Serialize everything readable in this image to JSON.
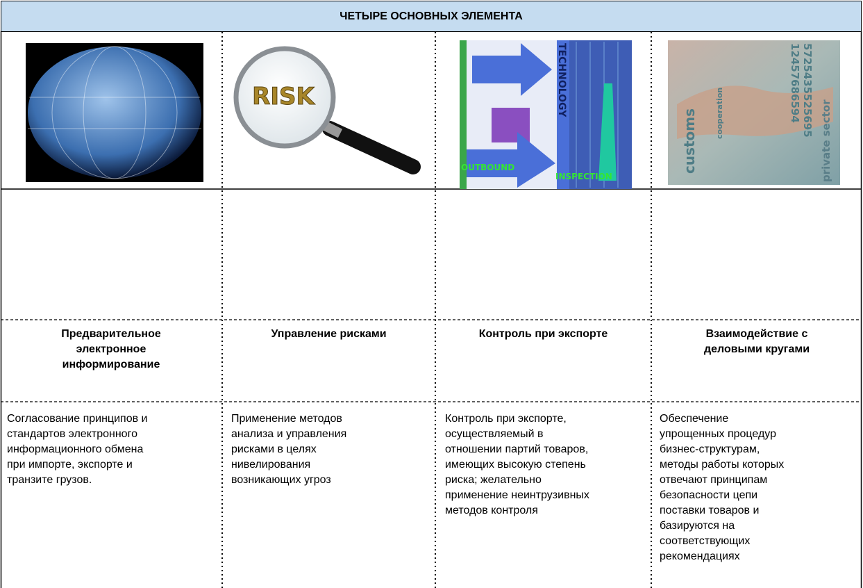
{
  "header": {
    "title": "ЧЕТЫРЕ ОСНОВНЫХ ЭЛЕМЕНТА"
  },
  "images": [
    {
      "texts": []
    },
    {
      "texts": [
        "RISK"
      ]
    },
    {
      "texts": [
        "TECHNOLOGY",
        "OUTBOUND",
        "INSPECTION"
      ]
    },
    {
      "texts": [
        "customs",
        "cooperation",
        "private sector",
        "12457686594",
        "5725435525695"
      ]
    }
  ],
  "columns": [
    {
      "heading": [
        "Предварительное",
        "электронное",
        "информирование"
      ],
      "text": [
        "Согласование принципов и",
        "стандартов электронного",
        "информационного обмена",
        "при импорте, экспорте и",
        "транзите грузов."
      ]
    },
    {
      "heading": [
        "Управление рисками"
      ],
      "text": [
        "Применение методов",
        "анализа и управления",
        "рисками в целях",
        "нивелирования",
        "возникающих угроз"
      ]
    },
    {
      "heading": [
        "Контроль при экспорте"
      ],
      "text": [
        "Контроль при экспорте,",
        "осуществляемый в",
        "отношении партий товаров,",
        "имеющих высокую степень",
        "риска; желательно",
        "применение неинтрузивных",
        "методов контроля"
      ]
    },
    {
      "heading": [
        "Взаимодействие с",
        "деловыми кругами"
      ],
      "text": [
        "Обеспечение",
        "упрощенных процедур",
        "бизнес-структурам,",
        "методы работы которых",
        "отвечают принципам",
        "безопасности цепи",
        "поставки товаров и",
        "базируются на",
        "соответствующих",
        "рекомендациях"
      ]
    }
  ]
}
